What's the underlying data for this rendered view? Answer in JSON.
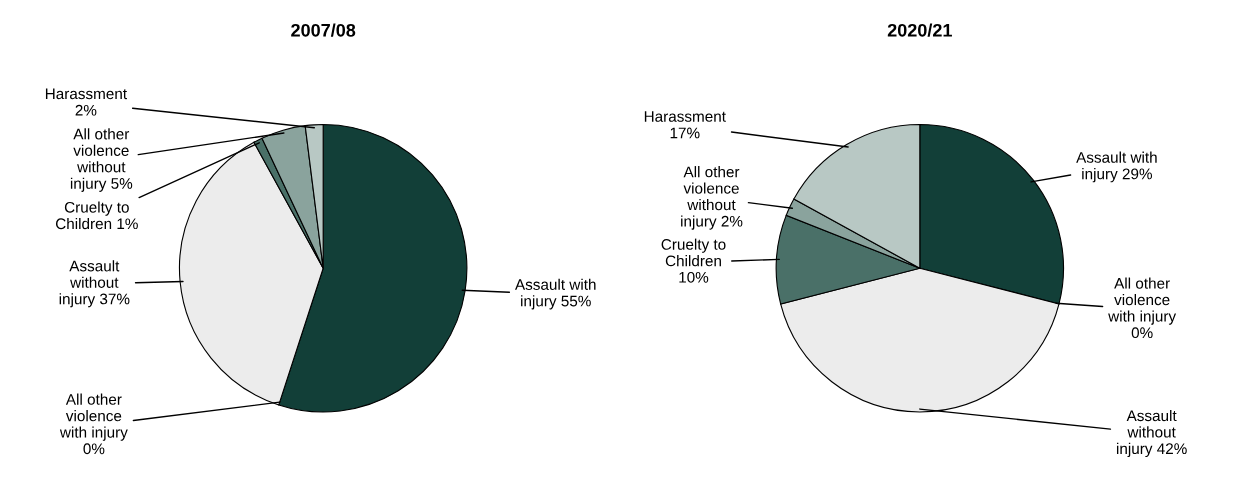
{
  "chart_data": [
    {
      "type": "pie",
      "title": "2007/08",
      "categories": [
        "Assault with\ninjury 55%",
        "All other\nviolence\nwith injury\n0%",
        "Assault\nwithout\ninjury 37%",
        "Cruelty to\nChildren 1%",
        "All other\nviolence\nwithout\ninjury 5%",
        "Harassment\n2%"
      ],
      "values": [
        55,
        0,
        37,
        1,
        5,
        2
      ],
      "colors": [
        "#123f38",
        "#ffffff",
        "#ececec",
        "#4a7068",
        "#8aa39d",
        "#b8c8c4"
      ]
    },
    {
      "type": "pie",
      "title": "2020/21",
      "categories": [
        "Assault with\ninjury 29%",
        "All other\nviolence\nwith injury\n0%",
        "Assault\nwithout\ninjury 42%",
        "Cruelty to\nChildren\n10%",
        "All other\nviolence\nwithout\ninjury 2%",
        "Harassment\n17%"
      ],
      "values": [
        29,
        0,
        42,
        10,
        2,
        17
      ],
      "colors": [
        "#123f38",
        "#ffffff",
        "#ececec",
        "#4a7068",
        "#8aa39d",
        "#b8c8c4"
      ]
    }
  ]
}
